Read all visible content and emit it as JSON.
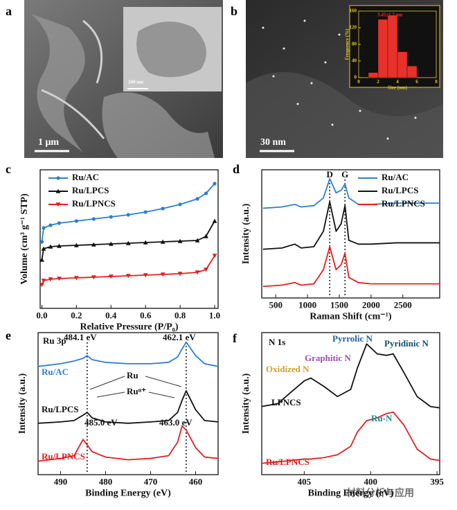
{
  "panel_labels": [
    "a",
    "b",
    "c",
    "d",
    "e",
    "f"
  ],
  "images": {
    "a": {
      "scale_bar": "1 μm",
      "inset_scale_bar": "200 nm"
    },
    "b": {
      "scale_bar": "30 nm"
    }
  },
  "watermark": "材料分析与应用",
  "chart_data": [
    {
      "type": "histogram",
      "xlabel": "Size (nm)",
      "ylabel": "Frequency (%)",
      "bins": [
        1,
        2,
        3,
        4,
        5,
        6
      ],
      "values": [
        12,
        140,
        150,
        62,
        28
      ],
      "color": "#e8312a",
      "xlim": [
        0,
        8
      ],
      "xticks": [
        0,
        2,
        4,
        6,
        8
      ],
      "ylim": [
        0,
        160
      ],
      "yticks": [
        0,
        40,
        80,
        120,
        160
      ],
      "labels": [
        {
          "text": "3.45±1.2 nm",
          "color": "#e8312a"
        }
      ]
    },
    {
      "type": "line",
      "xlabel": "Relative Pressure (P/P₀)",
      "ylabel": "Volume (cm³ g⁻¹ STP)",
      "x": [
        0,
        0.01,
        0.05,
        0.1,
        0.2,
        0.3,
        0.4,
        0.5,
        0.6,
        0.7,
        0.8,
        0.9,
        0.95,
        1.0
      ],
      "series": [
        {
          "name": "Ru/AC",
          "color": "#2a7fd4",
          "marker": "circle",
          "values": [
            48,
            58,
            60,
            61.5,
            63,
            64.5,
            66,
            67.5,
            69.5,
            72,
            75,
            79,
            83,
            90
          ]
        },
        {
          "name": "Ru/LPCS",
          "color": "#111111",
          "marker": "triangle-up",
          "values": [
            35,
            43,
            44.5,
            45,
            45.5,
            46,
            46.5,
            47,
            47.5,
            48,
            48.5,
            49,
            52,
            63
          ]
        },
        {
          "name": "Ru/LPNCS",
          "color": "#e02020",
          "marker": "triangle-down",
          "values": [
            17,
            20,
            21,
            21.5,
            22,
            22.5,
            23,
            23.5,
            24,
            24.5,
            25,
            26,
            28,
            38
          ]
        }
      ],
      "xlim": [
        -0.01,
        1.02
      ],
      "xticks": [
        {
          "value": 0,
          "label": "0.0"
        },
        0.2,
        0.4,
        0.6,
        0.8,
        {
          "value": 1,
          "label": "1.0"
        }
      ],
      "ylim": [
        0,
        100
      ],
      "legend": "upper left"
    },
    {
      "type": "line",
      "xlabel": "Raman Shift (cm⁻¹)",
      "ylabel": "Intensity (a.u.)",
      "x": [
        300,
        600,
        800,
        900,
        1100,
        1250,
        1350,
        1450,
        1530,
        1590,
        1650,
        1800,
        2000,
        2400,
        2800,
        3080
      ],
      "series": [
        {
          "name": "Ru/AC",
          "color": "#2a7fd4",
          "values": [
            70,
            71,
            73,
            71,
            72,
            78,
            93,
            82,
            84,
            89,
            78,
            73,
            73,
            74,
            74,
            74
          ]
        },
        {
          "name": "Ru/LPCS",
          "color": "#111111",
          "values": [
            38,
            39,
            42,
            39,
            40,
            52,
            75,
            52,
            58,
            72,
            45,
            42,
            42,
            43,
            43,
            43
          ]
        },
        {
          "name": "Ru/LPNCS",
          "color": "#e02020",
          "values": [
            9,
            10,
            12,
            10,
            11,
            22,
            40,
            22,
            26,
            35,
            16,
            12,
            11,
            11,
            11,
            11
          ]
        }
      ],
      "xlim": [
        280,
        3080
      ],
      "xticks": [
        500,
        1000,
        1500,
        2000,
        2500
      ],
      "ylim": [
        0,
        100
      ],
      "legend": "upper right",
      "peaks": [
        {
          "label": "D",
          "value": 1350
        },
        {
          "label": "G",
          "value": 1590
        }
      ]
    },
    {
      "type": "line",
      "xlabel": "Binding Energy (eV)",
      "ylabel": "Intensity (a.u.)",
      "x": [
        495,
        490,
        487,
        485,
        484.1,
        483,
        480,
        475,
        470,
        466,
        464,
        463,
        462.1,
        460,
        458,
        455
      ],
      "series": [
        {
          "name": "Ru/AC",
          "color": "#2a7fd4",
          "values": [
            80,
            82,
            84,
            86,
            88,
            85,
            83,
            82,
            82,
            83,
            87,
            93,
            98,
            88,
            82,
            80
          ]
        },
        {
          "name": "Ru/LPCS",
          "color": "#111111",
          "values": [
            38,
            39,
            40,
            44,
            46,
            42,
            39,
            38,
            39,
            40,
            46,
            55,
            62,
            48,
            40,
            39
          ]
        },
        {
          "name": "Ru/LPNCS",
          "color": "#e02020",
          "values": [
            10,
            12,
            14,
            26,
            22,
            17,
            13,
            11,
            12,
            14,
            24,
            36,
            33,
            20,
            13,
            12
          ]
        }
      ],
      "xlim": [
        495,
        455
      ],
      "xticks": [
        490,
        480,
        470,
        460
      ],
      "ylim": [
        0,
        105
      ],
      "peaks": [
        {
          "label": "484.1 eV",
          "value": 484.1
        },
        {
          "label": "462.1 eV",
          "value": 462.1
        }
      ],
      "labels": [
        {
          "text": "Ru 3p",
          "color": "#111111"
        },
        {
          "text": "Ru/AC",
          "color": "#2a7fd4"
        },
        {
          "text": "Ru",
          "color": "#111111"
        },
        {
          "text": "Ruⁿ⁺",
          "color": "#111111"
        },
        {
          "text": "Ru/LPCS",
          "color": "#111111"
        },
        {
          "text": "485.0 eV",
          "color": "#111111"
        },
        {
          "text": "463.0 eV",
          "color": "#111111"
        },
        {
          "text": "Ru/LPNCS",
          "color": "#e02020"
        }
      ]
    },
    {
      "type": "line",
      "xlabel": "Binding Energy (eV)",
      "ylabel": "Intensity (a.u.)",
      "x": [
        408.2,
        407,
        406,
        405,
        404.5,
        403.5,
        402.5,
        401.5,
        401,
        400.3,
        399.5,
        398.8,
        398.3,
        397.5,
        396.5,
        395.5,
        394.8
      ],
      "series": [
        {
          "name": "LPNCS",
          "color": "#111111",
          "values": [
            48,
            50,
            58,
            66,
            68,
            62,
            55,
            60,
            75,
            92,
            85,
            84,
            85,
            72,
            55,
            48,
            47
          ]
        },
        {
          "name": "Ru/LPNCS",
          "color": "#e02020",
          "values": [
            8,
            9,
            10,
            11,
            11,
            12,
            14,
            20,
            30,
            38,
            40,
            43,
            44,
            35,
            18,
            11,
            10
          ]
        }
      ],
      "xlim": [
        408.2,
        394.8
      ],
      "xticks": [
        405,
        400,
        395
      ],
      "ylim": [
        0,
        100
      ],
      "labels": [
        {
          "text": "N 1s",
          "color": "#111111"
        },
        {
          "text": "Pyrrolic N",
          "color": "#1f5fa8"
        },
        {
          "text": "Pyridinic N",
          "color": "#0d4f6e"
        },
        {
          "text": "Graphitic N",
          "color": "#9b4fb0"
        },
        {
          "text": "Oxidized N",
          "color": "#c9a227"
        },
        {
          "text": "Ru-N",
          "color": "#1b8a8a"
        }
      ]
    }
  ]
}
